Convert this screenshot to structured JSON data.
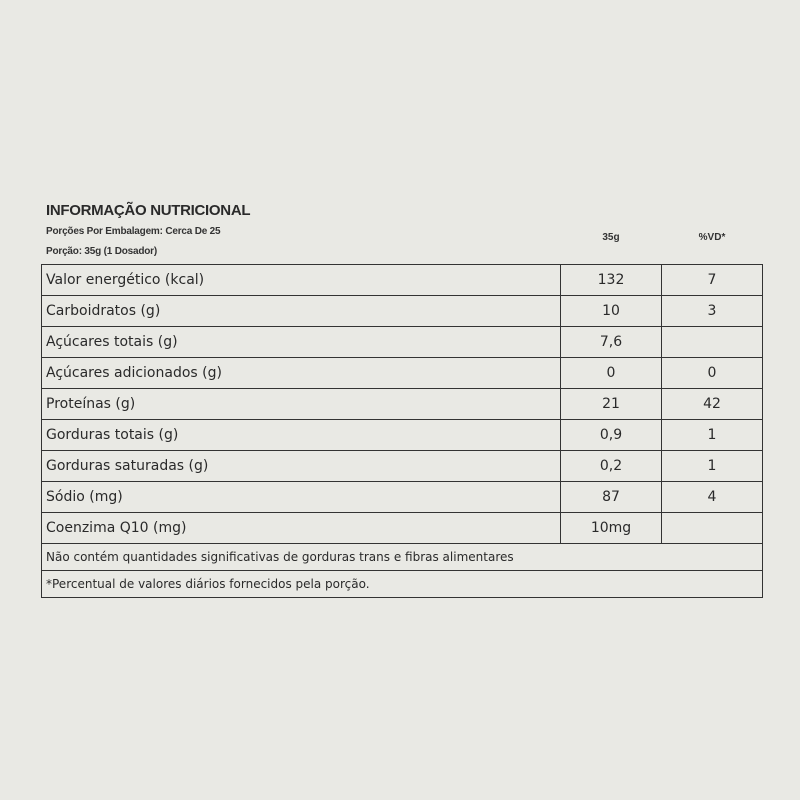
{
  "header": {
    "title": "INFORMAÇÃO NUTRICIONAL",
    "servings_per_package": "Porções Por Embalagem: Cerca De 25",
    "serving_size": "Porção: 35g (1 Dosador)",
    "col_amount": "35g",
    "col_dv": "%VD*"
  },
  "rows": [
    {
      "label": "Valor energético (kcal)",
      "amount": "132",
      "dv": "7"
    },
    {
      "label": "Carboidratos (g)",
      "amount": "10",
      "dv": "3"
    },
    {
      "label": "Açúcares totais (g)",
      "amount": "7,6",
      "dv": ""
    },
    {
      "label": "Açúcares adicionados (g)",
      "amount": "0",
      "dv": "0"
    },
    {
      "label": "Proteínas (g)",
      "amount": "21",
      "dv": "42"
    },
    {
      "label": "Gorduras totais (g)",
      "amount": "0,9",
      "dv": "1"
    },
    {
      "label": "Gorduras saturadas (g)",
      "amount": "0,2",
      "dv": "1"
    },
    {
      "label": "Sódio (mg)",
      "amount": "87",
      "dv": "4"
    },
    {
      "label": "Coenzima Q10 (mg)",
      "amount": "10mg",
      "dv": ""
    }
  ],
  "footnotes": [
    "Não contém quantidades significativas de gorduras trans e fibras alimentares",
    "*Percentual de valores diários fornecidos pela porção."
  ]
}
